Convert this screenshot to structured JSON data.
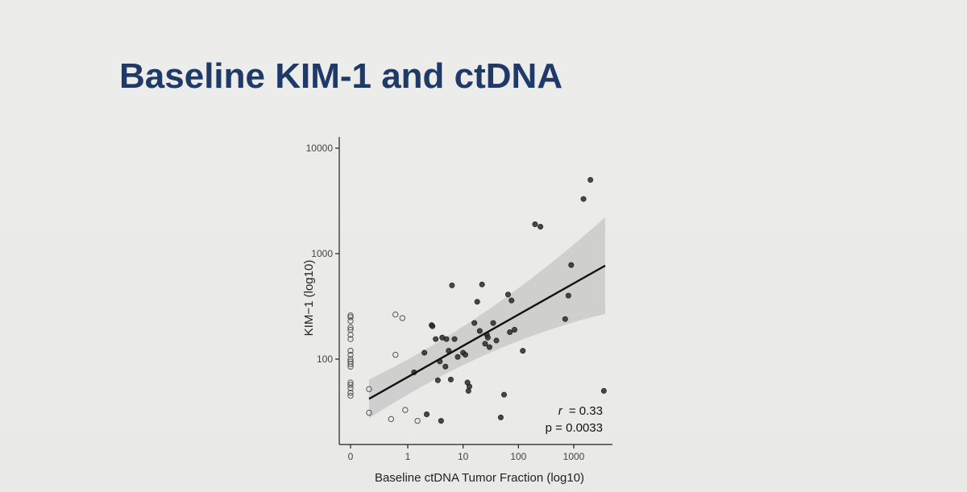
{
  "slide": {
    "title": "Baseline KIM-1 and ctDNA"
  },
  "chart_data": {
    "type": "scatter",
    "xlabel": "Baseline ctDNA Tumor Fraction (log10)",
    "ylabel": "KIM−1 (log10)",
    "x_scale": "log",
    "y_scale": "log",
    "x_ticks": [
      0,
      1,
      10,
      100,
      1000
    ],
    "x_tick_labels": [
      "0",
      "1",
      "10",
      "100",
      "1000"
    ],
    "y_ticks": [
      100,
      1000,
      10000
    ],
    "y_tick_labels": [
      "100",
      "1000",
      "10000"
    ],
    "ylim": [
      20,
      10000
    ],
    "grid": false,
    "annotations": {
      "r_label": "r",
      "r_value": "= 0.33",
      "p_label": "p = 0.0033"
    },
    "series": [
      {
        "style": "open",
        "points": [
          [
            0,
            260
          ],
          [
            0,
            250
          ],
          [
            0,
            230
          ],
          [
            0,
            200
          ],
          [
            0,
            190
          ],
          [
            0,
            170
          ],
          [
            0,
            155
          ],
          [
            0,
            120
          ],
          [
            0,
            110
          ],
          [
            0,
            100
          ],
          [
            0,
            95
          ],
          [
            0,
            90
          ],
          [
            0,
            85
          ],
          [
            0,
            60
          ],
          [
            0,
            57
          ],
          [
            0,
            53
          ],
          [
            0,
            48
          ],
          [
            0,
            45
          ],
          [
            0.2,
            52
          ],
          [
            0.2,
            31
          ],
          [
            0.5,
            27
          ],
          [
            0.6,
            265
          ],
          [
            0.6,
            110
          ],
          [
            0.8,
            245
          ],
          [
            0.9,
            33
          ],
          [
            1.5,
            26
          ]
        ]
      },
      {
        "style": "filled",
        "points": [
          [
            1.3,
            75
          ],
          [
            2.0,
            115
          ],
          [
            2.2,
            30
          ],
          [
            2.7,
            210
          ],
          [
            2.8,
            205
          ],
          [
            3.2,
            155
          ],
          [
            3.5,
            63
          ],
          [
            3.8,
            95
          ],
          [
            4.0,
            26
          ],
          [
            4.2,
            160
          ],
          [
            4.8,
            85
          ],
          [
            5.0,
            155
          ],
          [
            5.5,
            120
          ],
          [
            6.0,
            64
          ],
          [
            6.3,
            500
          ],
          [
            7.0,
            155
          ],
          [
            8.0,
            105
          ],
          [
            10.0,
            115
          ],
          [
            11.0,
            110
          ],
          [
            12.0,
            60
          ],
          [
            12.5,
            50
          ],
          [
            13.0,
            55
          ],
          [
            16.0,
            220
          ],
          [
            18.0,
            350
          ],
          [
            20.0,
            185
          ],
          [
            22.0,
            510
          ],
          [
            25.0,
            140
          ],
          [
            27.0,
            170
          ],
          [
            28.0,
            160
          ],
          [
            30.0,
            130
          ],
          [
            35.0,
            220
          ],
          [
            40.0,
            150
          ],
          [
            48.0,
            28
          ],
          [
            55.0,
            46
          ],
          [
            65.0,
            410
          ],
          [
            70.0,
            180
          ],
          [
            75.0,
            360
          ],
          [
            85.0,
            190
          ],
          [
            120.0,
            120
          ],
          [
            200.0,
            1900
          ],
          [
            250.0,
            1800
          ],
          [
            700.0,
            240
          ],
          [
            800.0,
            400
          ],
          [
            900.0,
            780
          ],
          [
            1500.0,
            3300
          ],
          [
            2000.0,
            5000
          ],
          [
            3500.0,
            50
          ]
        ]
      }
    ],
    "fit": {
      "x_start": 0.2,
      "y_start": 42,
      "x_end": 3700,
      "y_end": 770
    }
  }
}
